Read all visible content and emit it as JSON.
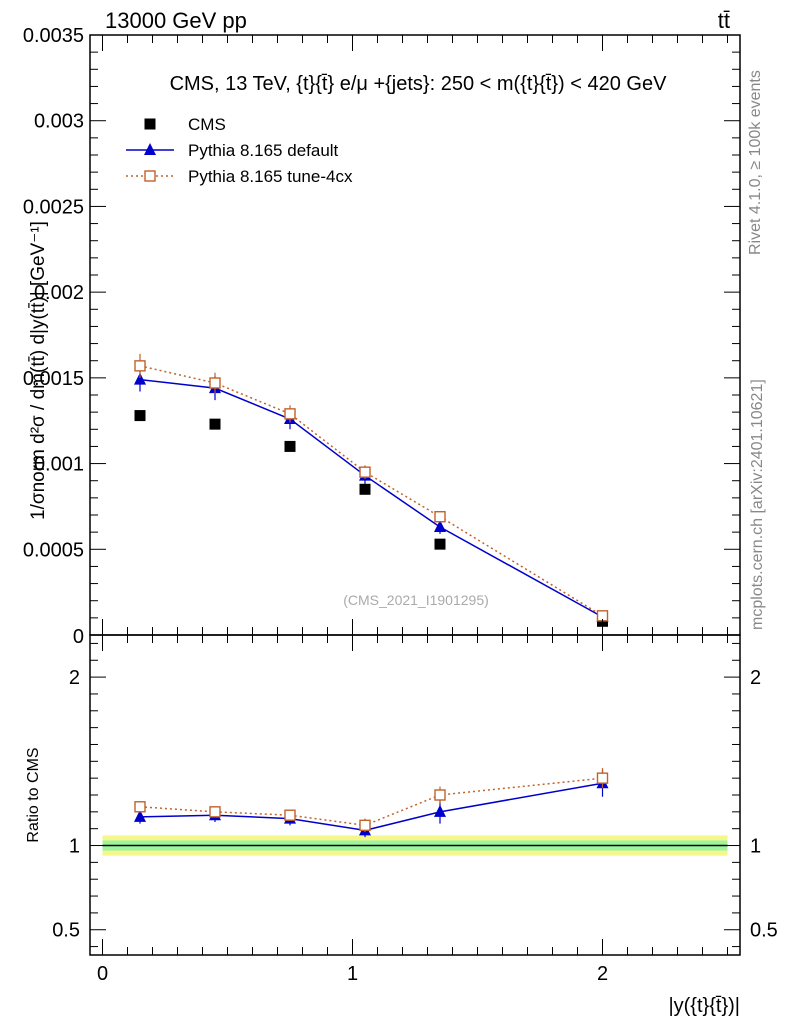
{
  "header": {
    "energy_label": "13000 GeV pp",
    "process_label": "tt̄"
  },
  "side_labels": {
    "rivet": "Rivet 4.1.0, ≥ 100k events",
    "mcplots": "mcplots.cern.ch [arXiv:2401.10621]"
  },
  "chart_data": [
    {
      "type": "scatter",
      "title": "CMS, 13 TeV, {t}{t̄} e/μ +{jets}: 250 < m({t}{t̄}) < 420 GeV",
      "watermark": "(CMS_2021_I1901295)",
      "ylabel": "#frac{1}{σ_{norm}} #frac{d^{2}σ}{dm({t}{t̄}) d|y({t}{t̄})|} [GeV^{-1}]",
      "ylabel_display": "1/σnorm d²σ / dm(tt̄) d|y(tt̄)| [GeV⁻¹]",
      "xlabel": "|y({t}{t̄})|",
      "ylim": [
        0,
        0.0035
      ],
      "xlim": [
        -0.05,
        2.55
      ],
      "yticks": [
        0.0005,
        0.001,
        0.0015,
        0.002,
        0.0025,
        0.003,
        0.0035
      ],
      "ytick_labels": [
        "0.0005",
        "0.001",
        "0.0015",
        "0.002",
        "0.0025",
        "0.003",
        "0.0035"
      ],
      "y_zero_label": "0",
      "legend_position": "top-left",
      "x": [
        0.15,
        0.45,
        0.75,
        1.05,
        1.35,
        2.0
      ],
      "bin_edges": [
        0.0,
        0.3,
        0.6,
        0.9,
        1.2,
        1.5,
        2.5
      ],
      "series": [
        {
          "name": "CMS",
          "marker": "square",
          "color": "#000000",
          "values": [
            0.00128,
            0.00123,
            0.0011,
            0.00085,
            0.00053,
            8e-05
          ],
          "errors": [
            2e-05,
            2e-05,
            2e-05,
            2e-05,
            2e-05,
            1e-05
          ]
        },
        {
          "name": "Pythia 8.165 default",
          "marker": "triangle",
          "color": "#0000cc",
          "line": "solid",
          "values": [
            0.00149,
            0.00144,
            0.00126,
            0.00093,
            0.00063,
            0.000105
          ],
          "errors": [
            7e-05,
            7e-05,
            6e-05,
            5e-05,
            4e-05,
            1e-05
          ]
        },
        {
          "name": "Pythia 8.165 tune-4cx",
          "marker": "open-square",
          "color": "#c0622b",
          "line": "dotted",
          "values": [
            0.00157,
            0.00147,
            0.00129,
            0.00095,
            0.00069,
            0.000112
          ],
          "errors": [
            7e-05,
            6e-05,
            5e-05,
            4e-05,
            3e-05,
            1e-05
          ]
        }
      ]
    },
    {
      "type": "scatter",
      "ylabel": "Ratio to CMS",
      "ylim": [
        0.35,
        2.25
      ],
      "yticks": [
        0.5,
        1,
        2
      ],
      "ytick_labels": [
        "0.5",
        "1",
        "2"
      ],
      "xticks": [
        0,
        1,
        2
      ],
      "xtick_labels": [
        "0",
        "1",
        "2"
      ],
      "x": [
        0.15,
        0.45,
        0.75,
        1.05,
        1.35,
        2.0
      ],
      "reference_band": {
        "inner": 0.03,
        "outer": 0.06
      },
      "series": [
        {
          "name": "Pythia 8.165 default",
          "color": "#0000cc",
          "line": "solid",
          "values": [
            1.17,
            1.18,
            1.16,
            1.09,
            1.2,
            1.37
          ],
          "errors": [
            0.04,
            0.04,
            0.04,
            0.04,
            0.07,
            0.08
          ]
        },
        {
          "name": "Pythia 8.165 tune-4cx",
          "color": "#c0622b",
          "line": "dotted",
          "values": [
            1.23,
            1.2,
            1.18,
            1.12,
            1.3,
            1.4
          ],
          "errors": [
            0.03,
            0.03,
            0.03,
            0.04,
            0.05,
            0.06
          ]
        }
      ]
    }
  ]
}
